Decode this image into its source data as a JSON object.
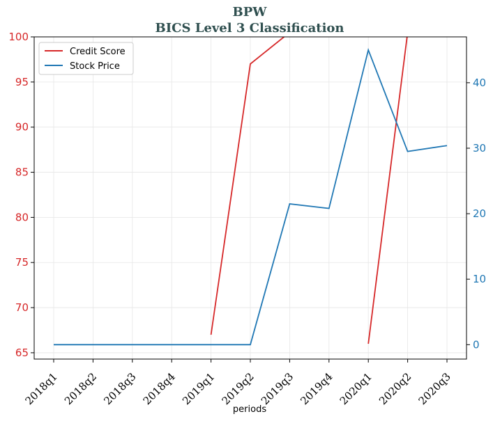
{
  "chart_data": {
    "type": "line",
    "title": "BPW",
    "subtitle": "BICS Level 3 Classification",
    "xlabel": "periods",
    "categories": [
      "2018q1",
      "2018q2",
      "2018q3",
      "2018q4",
      "2019q1",
      "2019q2",
      "2019q3",
      "2019q4",
      "2020q1",
      "2020q2",
      "2020q3"
    ],
    "y_left": {
      "ticks": [
        65,
        70,
        75,
        80,
        85,
        90,
        95,
        100
      ],
      "ylim": [
        64.3,
        100
      ],
      "color": "#d62728"
    },
    "y_right": {
      "ticks": [
        0,
        10,
        20,
        30,
        40
      ],
      "ylim": [
        -2.2,
        47
      ],
      "color": "#1f77b4"
    },
    "grid": true,
    "legend_position": "top-left",
    "series": [
      {
        "name": "Credit Score",
        "axis": "left",
        "color": "#d62728",
        "values": [
          null,
          null,
          null,
          null,
          67,
          97,
          100.5,
          null,
          66,
          100.5,
          null
        ]
      },
      {
        "name": "Stock Price",
        "axis": "right",
        "color": "#1f77b4",
        "values": [
          0,
          0,
          0,
          0,
          0,
          0,
          21.5,
          20.8,
          45,
          29.5,
          30.4
        ]
      }
    ]
  }
}
